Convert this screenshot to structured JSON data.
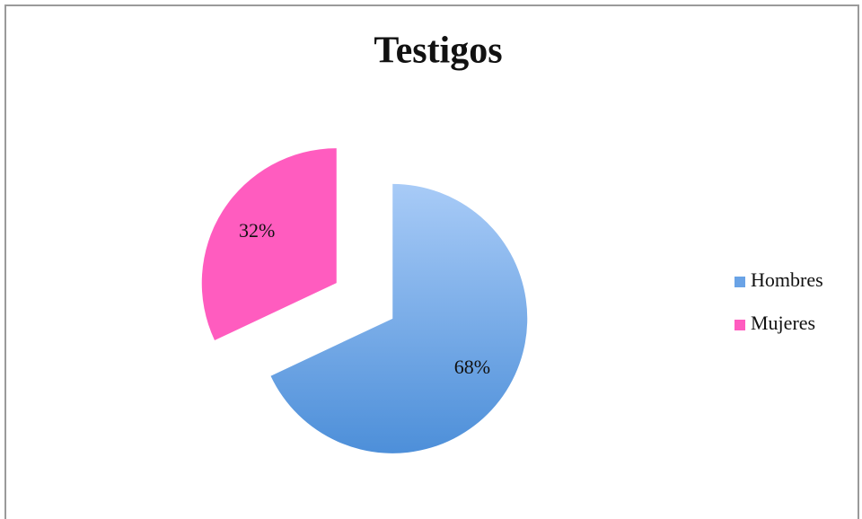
{
  "chart_data": {
    "type": "pie",
    "title": "Testigos",
    "categories": [
      "Hombres",
      "Mujeres"
    ],
    "values": [
      68,
      32
    ],
    "value_labels": [
      "68%",
      "32%"
    ],
    "colors": [
      "#6aa3e6",
      "#ff5cbf"
    ],
    "legend": "right"
  }
}
